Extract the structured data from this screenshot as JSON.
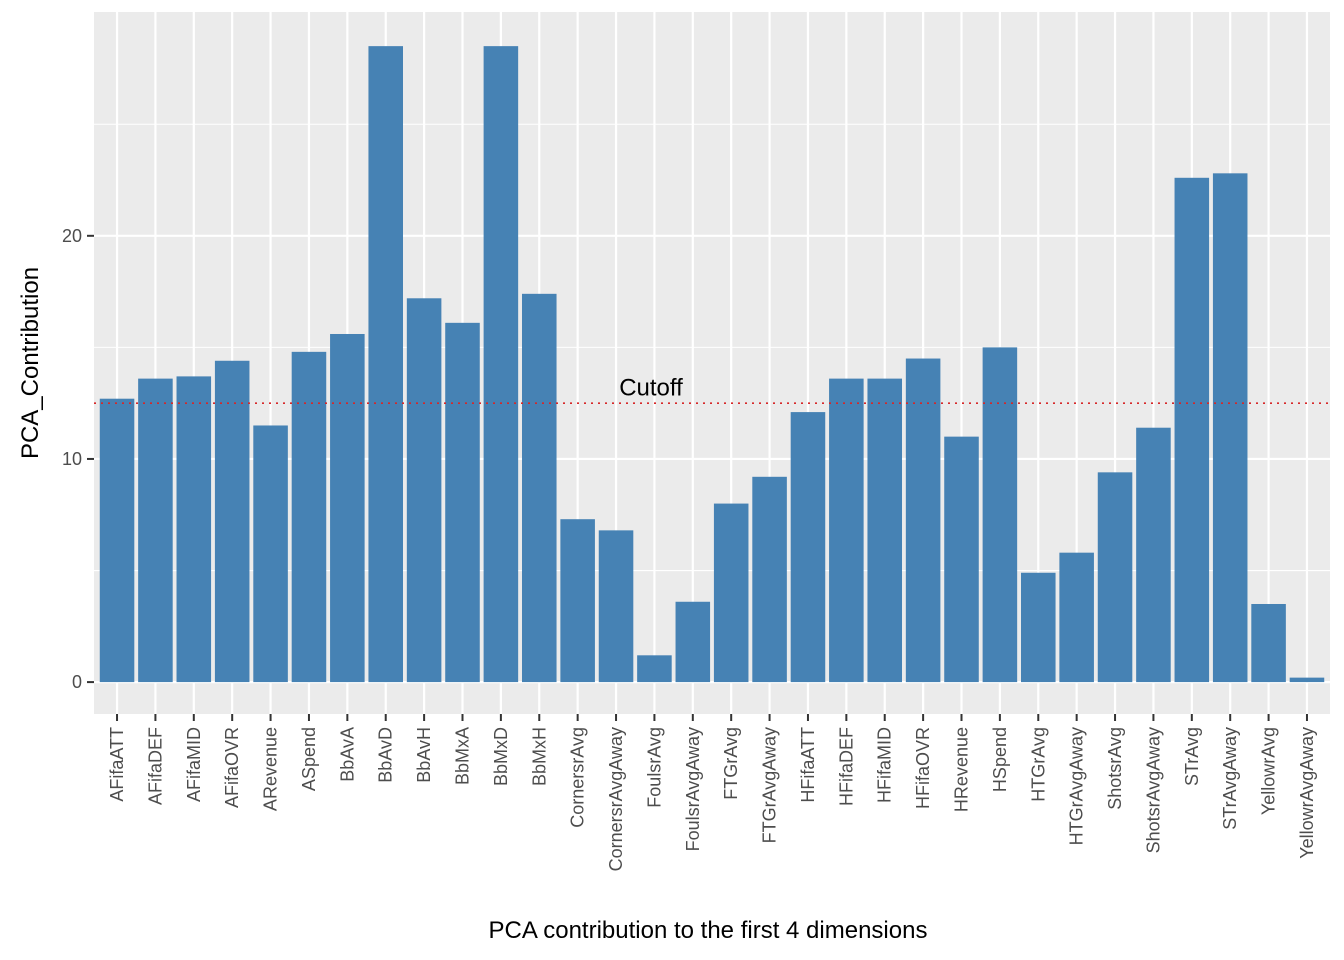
{
  "chart_data": {
    "type": "bar",
    "xlabel": "PCA contribution to the first 4 dimensions",
    "ylabel": "PCA_Contribution",
    "categories": [
      "AFifaATT",
      "AFifaDEF",
      "AFifaMID",
      "AFifaOVR",
      "ARevenue",
      "ASpend",
      "BbAvA",
      "BbAvD",
      "BbAvH",
      "BbMxA",
      "BbMxD",
      "BbMxH",
      "CornersrAvg",
      "CornersrAvgAway",
      "FoulsrAvg",
      "FoulsrAvgAway",
      "FTGrAvg",
      "FTGrAvgAway",
      "HFifaATT",
      "HFifaDEF",
      "HFifaMID",
      "HFifaOVR",
      "HRevenue",
      "HSpend",
      "HTGrAvg",
      "HTGrAvgAway",
      "ShotsrAvg",
      "ShotsrAvgAway",
      "STrAvg",
      "STrAvgAway",
      "YellowrAvg",
      "YellowrAvgAway"
    ],
    "values": [
      12.7,
      13.6,
      13.7,
      14.4,
      11.5,
      14.8,
      15.6,
      28.5,
      17.2,
      16.1,
      28.5,
      17.4,
      7.3,
      6.8,
      1.2,
      3.6,
      8.0,
      9.2,
      12.1,
      13.6,
      13.6,
      14.5,
      11.0,
      15.0,
      4.9,
      5.8,
      9.4,
      11.4,
      22.6,
      22.8,
      3.5,
      0.2
    ],
    "yticks": [
      0,
      10,
      20
    ],
    "ylim": [
      -1.43,
      30.03
    ],
    "grid": true,
    "cutoff": {
      "value": 12.5,
      "label": "Cutoff",
      "color": "#d62728"
    },
    "bar_color": "#4682b4",
    "panel_color": "#ebebeb",
    "grid_color": "#ffffff"
  }
}
